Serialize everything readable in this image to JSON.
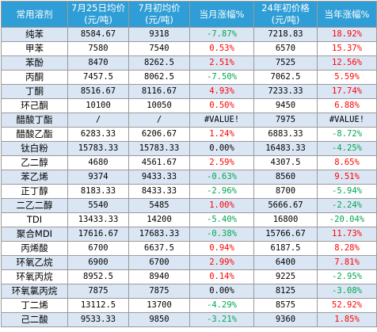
{
  "headers": [
    "常用溶剂",
    "7月25日均价\n(元/吨)",
    "7月初均价\n(元/吨)",
    "当月涨幅%",
    "24年初价格\n(元/吨)",
    "当年涨幅%"
  ],
  "rows": [
    {
      "name": "纯苯",
      "jul25": "8584.67",
      "julstart": "9318",
      "mchg": "-7.87%",
      "mcls": "neg",
      "y24": "7218.83",
      "ychg": "18.92%",
      "ycls": "pos"
    },
    {
      "name": "甲苯",
      "jul25": "7580",
      "julstart": "7540",
      "mchg": "0.53%",
      "mcls": "pos",
      "y24": "6570",
      "ychg": "15.37%",
      "ycls": "pos"
    },
    {
      "name": "苯酚",
      "jul25": "8470",
      "julstart": "8262.5",
      "mchg": "2.51%",
      "mcls": "pos",
      "y24": "7525",
      "ychg": "12.56%",
      "ycls": "pos"
    },
    {
      "name": "丙酮",
      "jul25": "7457.5",
      "julstart": "8062.5",
      "mchg": "-7.50%",
      "mcls": "neg",
      "y24": "7062.5",
      "ychg": "5.59%",
      "ycls": "pos"
    },
    {
      "name": "丁酮",
      "jul25": "8516.67",
      "julstart": "8116.67",
      "mchg": "4.93%",
      "mcls": "pos",
      "y24": "7233.33",
      "ychg": "17.74%",
      "ycls": "pos"
    },
    {
      "name": "环己酮",
      "jul25": "10100",
      "julstart": "10050",
      "mchg": "0.50%",
      "mcls": "pos",
      "y24": "9450",
      "ychg": "6.88%",
      "ycls": "pos"
    },
    {
      "name": "醋酸丁酯",
      "jul25": "/",
      "julstart": "/",
      "mchg": "#VALUE!",
      "mcls": "err",
      "y24": "7975",
      "ychg": "#VALUE!",
      "ycls": "err"
    },
    {
      "name": "醋酸乙酯",
      "jul25": "6283.33",
      "julstart": "6206.67",
      "mchg": "1.24%",
      "mcls": "pos",
      "y24": "6883.33",
      "ychg": "-8.72%",
      "ycls": "neg"
    },
    {
      "name": "钛白粉",
      "jul25": "15783.33",
      "julstart": "15783.33",
      "mchg": "0.00%",
      "mcls": "zero",
      "y24": "16483.33",
      "ychg": "-4.25%",
      "ycls": "neg"
    },
    {
      "name": "乙二醇",
      "jul25": "4680",
      "julstart": "4561.67",
      "mchg": "2.59%",
      "mcls": "pos",
      "y24": "4307.5",
      "ychg": "8.65%",
      "ycls": "pos"
    },
    {
      "name": "苯乙烯",
      "jul25": "9374",
      "julstart": "9433.33",
      "mchg": "-0.63%",
      "mcls": "neg",
      "y24": "8560",
      "ychg": "9.51%",
      "ycls": "pos"
    },
    {
      "name": "正丁醇",
      "jul25": "8183.33",
      "julstart": "8433.33",
      "mchg": "-2.96%",
      "mcls": "neg",
      "y24": "8700",
      "ychg": "-5.94%",
      "ycls": "neg"
    },
    {
      "name": "二乙二醇",
      "jul25": "5540",
      "julstart": "5485",
      "mchg": "1.00%",
      "mcls": "pos",
      "y24": "5666.67",
      "ychg": "-2.24%",
      "ycls": "neg"
    },
    {
      "name": "TDI",
      "jul25": "13433.33",
      "julstart": "14200",
      "mchg": "-5.40%",
      "mcls": "neg",
      "y24": "16800",
      "ychg": "-20.04%",
      "ycls": "neg"
    },
    {
      "name": "聚合MDI",
      "jul25": "17616.67",
      "julstart": "17683.33",
      "mchg": "-0.38%",
      "mcls": "neg",
      "y24": "15766.67",
      "ychg": "11.73%",
      "ycls": "pos"
    },
    {
      "name": "丙烯酸",
      "jul25": "6700",
      "julstart": "6637.5",
      "mchg": "0.94%",
      "mcls": "pos",
      "y24": "6187.5",
      "ychg": "8.28%",
      "ycls": "pos"
    },
    {
      "name": "环氧乙烷",
      "jul25": "6900",
      "julstart": "6700",
      "mchg": "2.99%",
      "mcls": "pos",
      "y24": "6400",
      "ychg": "7.81%",
      "ycls": "pos"
    },
    {
      "name": "环氧丙烷",
      "jul25": "8952.5",
      "julstart": "8940",
      "mchg": "0.14%",
      "mcls": "pos",
      "y24": "9225",
      "ychg": "-2.95%",
      "ycls": "neg"
    },
    {
      "name": "环氧氯丙烷",
      "jul25": "7875",
      "julstart": "7875",
      "mchg": "0.00%",
      "mcls": "zero",
      "y24": "8125",
      "ychg": "-3.08%",
      "ycls": "neg"
    },
    {
      "name": "丁二烯",
      "jul25": "13112.5",
      "julstart": "13700",
      "mchg": "-4.29%",
      "mcls": "neg",
      "y24": "8575",
      "ychg": "52.92%",
      "ycls": "pos"
    },
    {
      "name": "己二酸",
      "jul25": "9533.33",
      "julstart": "9850",
      "mchg": "-3.21%",
      "mcls": "neg",
      "y24": "9360",
      "ychg": "1.85%",
      "ycls": "pos"
    }
  ],
  "colors": {
    "header_bg": "#2f9ed6",
    "row_alt_bg": "#dbe6f4",
    "positive": "#ff0000",
    "negative": "#00a651"
  }
}
